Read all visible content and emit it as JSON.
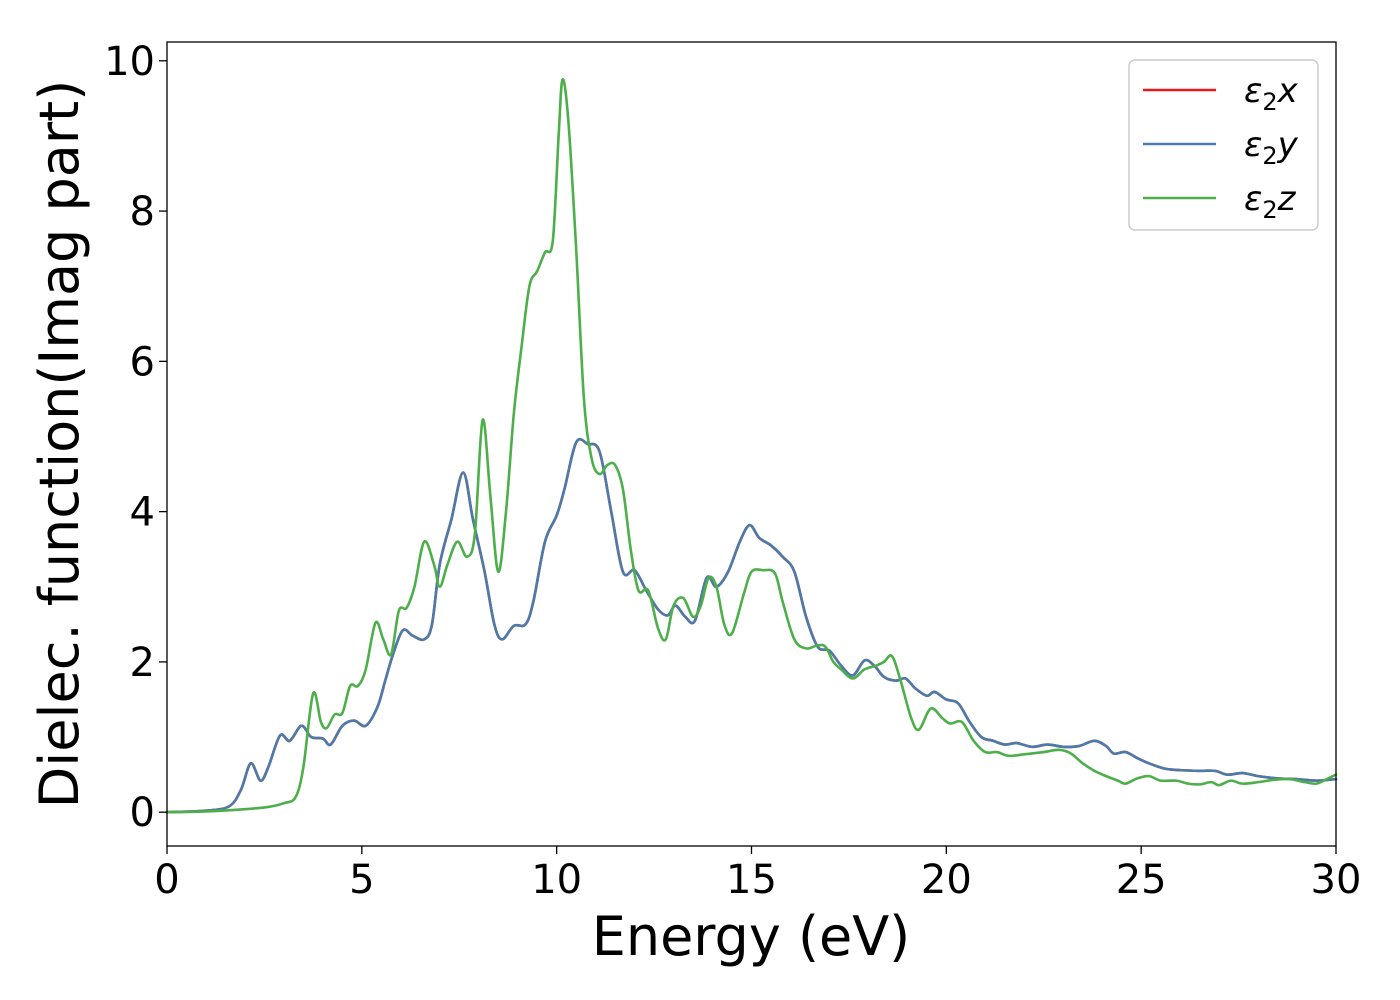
{
  "chart_data": {
    "type": "line",
    "title": "",
    "xlabel": "Energy (eV)",
    "ylabel": "Dielec. function(Imag part)",
    "xlim": [
      0,
      30
    ],
    "ylim": [
      -0.45,
      10.25
    ],
    "xticks": [
      0,
      5,
      10,
      15,
      20,
      25,
      30
    ],
    "yticks": [
      0,
      2,
      4,
      6,
      8,
      10
    ],
    "grid": false,
    "legend_position": "top-right",
    "series": [
      {
        "name": "ε₂x",
        "legend_base": "ε",
        "legend_sub": "2",
        "legend_suffix": "x",
        "color": "#e41a1c",
        "points": [
          [
            0,
            0
          ],
          [
            1,
            0.02
          ],
          [
            1.6,
            0.08
          ],
          [
            1.9,
            0.3
          ],
          [
            2.15,
            0.65
          ],
          [
            2.4,
            0.42
          ],
          [
            2.6,
            0.6
          ],
          [
            2.9,
            1.02
          ],
          [
            3.15,
            0.95
          ],
          [
            3.45,
            1.15
          ],
          [
            3.7,
            1.0
          ],
          [
            4.0,
            0.98
          ],
          [
            4.2,
            0.9
          ],
          [
            4.5,
            1.15
          ],
          [
            4.8,
            1.22
          ],
          [
            5.1,
            1.15
          ],
          [
            5.4,
            1.4
          ],
          [
            5.6,
            1.75
          ],
          [
            5.8,
            2.1
          ],
          [
            6.05,
            2.42
          ],
          [
            6.3,
            2.35
          ],
          [
            6.6,
            2.3
          ],
          [
            6.8,
            2.5
          ],
          [
            7.0,
            3.3
          ],
          [
            7.3,
            3.9
          ],
          [
            7.6,
            4.52
          ],
          [
            7.85,
            3.9
          ],
          [
            8.15,
            3.2
          ],
          [
            8.4,
            2.5
          ],
          [
            8.6,
            2.3
          ],
          [
            8.9,
            2.48
          ],
          [
            9.2,
            2.5
          ],
          [
            9.4,
            2.8
          ],
          [
            9.7,
            3.6
          ],
          [
            10.0,
            3.95
          ],
          [
            10.2,
            4.3
          ],
          [
            10.5,
            4.92
          ],
          [
            10.8,
            4.9
          ],
          [
            11.1,
            4.8
          ],
          [
            11.4,
            4.0
          ],
          [
            11.7,
            3.2
          ],
          [
            12.0,
            3.22
          ],
          [
            12.3,
            2.95
          ],
          [
            12.6,
            2.7
          ],
          [
            12.85,
            2.62
          ],
          [
            13.05,
            2.75
          ],
          [
            13.3,
            2.6
          ],
          [
            13.55,
            2.55
          ],
          [
            13.85,
            3.12
          ],
          [
            14.1,
            3.0
          ],
          [
            14.4,
            3.2
          ],
          [
            14.7,
            3.6
          ],
          [
            14.95,
            3.82
          ],
          [
            15.2,
            3.65
          ],
          [
            15.5,
            3.55
          ],
          [
            15.8,
            3.4
          ],
          [
            16.1,
            3.2
          ],
          [
            16.4,
            2.6
          ],
          [
            16.7,
            2.2
          ],
          [
            17.0,
            2.15
          ],
          [
            17.3,
            1.95
          ],
          [
            17.6,
            1.82
          ],
          [
            17.9,
            2.02
          ],
          [
            18.15,
            1.95
          ],
          [
            18.4,
            1.8
          ],
          [
            18.7,
            1.75
          ],
          [
            18.95,
            1.78
          ],
          [
            19.2,
            1.65
          ],
          [
            19.5,
            1.55
          ],
          [
            19.7,
            1.6
          ],
          [
            20.0,
            1.5
          ],
          [
            20.3,
            1.45
          ],
          [
            20.6,
            1.2
          ],
          [
            20.9,
            1.0
          ],
          [
            21.2,
            0.95
          ],
          [
            21.5,
            0.9
          ],
          [
            21.8,
            0.92
          ],
          [
            22.2,
            0.87
          ],
          [
            22.6,
            0.9
          ],
          [
            23.0,
            0.87
          ],
          [
            23.4,
            0.88
          ],
          [
            23.8,
            0.95
          ],
          [
            24.1,
            0.88
          ],
          [
            24.3,
            0.78
          ],
          [
            24.6,
            0.8
          ],
          [
            24.9,
            0.72
          ],
          [
            25.2,
            0.65
          ],
          [
            25.6,
            0.58
          ],
          [
            26.0,
            0.56
          ],
          [
            26.5,
            0.55
          ],
          [
            26.9,
            0.55
          ],
          [
            27.2,
            0.5
          ],
          [
            27.6,
            0.52
          ],
          [
            28.0,
            0.48
          ],
          [
            28.5,
            0.45
          ],
          [
            29.0,
            0.44
          ],
          [
            29.5,
            0.42
          ],
          [
            30.0,
            0.44
          ]
        ]
      },
      {
        "name": "ε₂y",
        "legend_base": "ε",
        "legend_sub": "2",
        "legend_suffix": "y",
        "color": "#4a7bab",
        "points": [
          [
            0,
            0
          ],
          [
            1,
            0.02
          ],
          [
            1.6,
            0.08
          ],
          [
            1.9,
            0.3
          ],
          [
            2.15,
            0.65
          ],
          [
            2.4,
            0.42
          ],
          [
            2.6,
            0.6
          ],
          [
            2.9,
            1.02
          ],
          [
            3.15,
            0.95
          ],
          [
            3.45,
            1.15
          ],
          [
            3.7,
            1.0
          ],
          [
            4.0,
            0.98
          ],
          [
            4.2,
            0.9
          ],
          [
            4.5,
            1.15
          ],
          [
            4.8,
            1.22
          ],
          [
            5.1,
            1.15
          ],
          [
            5.4,
            1.4
          ],
          [
            5.6,
            1.75
          ],
          [
            5.8,
            2.1
          ],
          [
            6.05,
            2.42
          ],
          [
            6.3,
            2.35
          ],
          [
            6.6,
            2.3
          ],
          [
            6.8,
            2.5
          ],
          [
            7.0,
            3.3
          ],
          [
            7.3,
            3.9
          ],
          [
            7.6,
            4.52
          ],
          [
            7.85,
            3.9
          ],
          [
            8.15,
            3.2
          ],
          [
            8.4,
            2.5
          ],
          [
            8.6,
            2.3
          ],
          [
            8.9,
            2.48
          ],
          [
            9.2,
            2.5
          ],
          [
            9.4,
            2.8
          ],
          [
            9.7,
            3.6
          ],
          [
            10.0,
            3.95
          ],
          [
            10.2,
            4.3
          ],
          [
            10.5,
            4.92
          ],
          [
            10.8,
            4.9
          ],
          [
            11.1,
            4.8
          ],
          [
            11.4,
            4.0
          ],
          [
            11.7,
            3.2
          ],
          [
            12.0,
            3.22
          ],
          [
            12.3,
            2.95
          ],
          [
            12.6,
            2.7
          ],
          [
            12.85,
            2.62
          ],
          [
            13.05,
            2.75
          ],
          [
            13.3,
            2.6
          ],
          [
            13.55,
            2.55
          ],
          [
            13.85,
            3.12
          ],
          [
            14.1,
            3.0
          ],
          [
            14.4,
            3.2
          ],
          [
            14.7,
            3.6
          ],
          [
            14.95,
            3.82
          ],
          [
            15.2,
            3.65
          ],
          [
            15.5,
            3.55
          ],
          [
            15.8,
            3.4
          ],
          [
            16.1,
            3.2
          ],
          [
            16.4,
            2.6
          ],
          [
            16.7,
            2.2
          ],
          [
            17.0,
            2.15
          ],
          [
            17.3,
            1.95
          ],
          [
            17.6,
            1.82
          ],
          [
            17.9,
            2.02
          ],
          [
            18.15,
            1.95
          ],
          [
            18.4,
            1.8
          ],
          [
            18.7,
            1.75
          ],
          [
            18.95,
            1.78
          ],
          [
            19.2,
            1.65
          ],
          [
            19.5,
            1.55
          ],
          [
            19.7,
            1.6
          ],
          [
            20.0,
            1.5
          ],
          [
            20.3,
            1.45
          ],
          [
            20.6,
            1.2
          ],
          [
            20.9,
            1.0
          ],
          [
            21.2,
            0.95
          ],
          [
            21.5,
            0.9
          ],
          [
            21.8,
            0.92
          ],
          [
            22.2,
            0.87
          ],
          [
            22.6,
            0.9
          ],
          [
            23.0,
            0.87
          ],
          [
            23.4,
            0.88
          ],
          [
            23.8,
            0.95
          ],
          [
            24.1,
            0.88
          ],
          [
            24.3,
            0.78
          ],
          [
            24.6,
            0.8
          ],
          [
            24.9,
            0.72
          ],
          [
            25.2,
            0.65
          ],
          [
            25.6,
            0.58
          ],
          [
            26.0,
            0.56
          ],
          [
            26.5,
            0.55
          ],
          [
            26.9,
            0.55
          ],
          [
            27.2,
            0.5
          ],
          [
            27.6,
            0.52
          ],
          [
            28.0,
            0.48
          ],
          [
            28.5,
            0.45
          ],
          [
            29.0,
            0.44
          ],
          [
            29.5,
            0.42
          ],
          [
            30.0,
            0.44
          ]
        ]
      },
      {
        "name": "ε₂z",
        "legend_base": "ε",
        "legend_sub": "2",
        "legend_suffix": "z",
        "color": "#4daf4a",
        "points": [
          [
            0,
            0
          ],
          [
            1,
            0.01
          ],
          [
            2,
            0.04
          ],
          [
            2.6,
            0.07
          ],
          [
            3.0,
            0.12
          ],
          [
            3.3,
            0.2
          ],
          [
            3.5,
            0.6
          ],
          [
            3.75,
            1.58
          ],
          [
            3.95,
            1.2
          ],
          [
            4.1,
            1.12
          ],
          [
            4.3,
            1.3
          ],
          [
            4.5,
            1.32
          ],
          [
            4.7,
            1.68
          ],
          [
            4.9,
            1.68
          ],
          [
            5.1,
            1.9
          ],
          [
            5.35,
            2.52
          ],
          [
            5.55,
            2.3
          ],
          [
            5.75,
            2.1
          ],
          [
            5.95,
            2.68
          ],
          [
            6.15,
            2.72
          ],
          [
            6.35,
            3.0
          ],
          [
            6.6,
            3.6
          ],
          [
            6.85,
            3.3
          ],
          [
            7.0,
            3.0
          ],
          [
            7.2,
            3.3
          ],
          [
            7.45,
            3.6
          ],
          [
            7.7,
            3.4
          ],
          [
            7.9,
            3.7
          ],
          [
            8.1,
            5.22
          ],
          [
            8.3,
            4.2
          ],
          [
            8.5,
            3.2
          ],
          [
            8.7,
            4.0
          ],
          [
            8.9,
            5.3
          ],
          [
            9.1,
            6.2
          ],
          [
            9.3,
            7.0
          ],
          [
            9.5,
            7.2
          ],
          [
            9.7,
            7.45
          ],
          [
            9.9,
            7.6
          ],
          [
            10.05,
            9.0
          ],
          [
            10.15,
            9.75
          ],
          [
            10.3,
            9.2
          ],
          [
            10.5,
            7.5
          ],
          [
            10.7,
            5.5
          ],
          [
            10.9,
            4.7
          ],
          [
            11.1,
            4.5
          ],
          [
            11.3,
            4.62
          ],
          [
            11.5,
            4.62
          ],
          [
            11.7,
            4.3
          ],
          [
            11.9,
            3.5
          ],
          [
            12.1,
            2.95
          ],
          [
            12.35,
            2.95
          ],
          [
            12.6,
            2.45
          ],
          [
            12.8,
            2.3
          ],
          [
            13.0,
            2.75
          ],
          [
            13.25,
            2.85
          ],
          [
            13.5,
            2.6
          ],
          [
            13.7,
            2.75
          ],
          [
            13.9,
            3.12
          ],
          [
            14.1,
            3.0
          ],
          [
            14.3,
            2.5
          ],
          [
            14.5,
            2.38
          ],
          [
            14.8,
            2.9
          ],
          [
            15.0,
            3.2
          ],
          [
            15.3,
            3.22
          ],
          [
            15.6,
            3.18
          ],
          [
            15.8,
            2.8
          ],
          [
            16.1,
            2.3
          ],
          [
            16.4,
            2.18
          ],
          [
            16.7,
            2.22
          ],
          [
            16.9,
            2.2
          ],
          [
            17.1,
            2.0
          ],
          [
            17.3,
            1.9
          ],
          [
            17.6,
            1.78
          ],
          [
            17.9,
            1.9
          ],
          [
            18.2,
            1.95
          ],
          [
            18.4,
            2.0
          ],
          [
            18.6,
            2.08
          ],
          [
            18.8,
            1.8
          ],
          [
            19.1,
            1.25
          ],
          [
            19.3,
            1.1
          ],
          [
            19.6,
            1.38
          ],
          [
            19.9,
            1.25
          ],
          [
            20.1,
            1.18
          ],
          [
            20.4,
            1.2
          ],
          [
            20.7,
            0.95
          ],
          [
            21.0,
            0.8
          ],
          [
            21.3,
            0.8
          ],
          [
            21.6,
            0.75
          ],
          [
            22.0,
            0.77
          ],
          [
            22.5,
            0.8
          ],
          [
            22.9,
            0.83
          ],
          [
            23.2,
            0.78
          ],
          [
            23.5,
            0.65
          ],
          [
            23.8,
            0.55
          ],
          [
            24.1,
            0.48
          ],
          [
            24.4,
            0.42
          ],
          [
            24.6,
            0.38
          ],
          [
            24.9,
            0.45
          ],
          [
            25.2,
            0.48
          ],
          [
            25.5,
            0.42
          ],
          [
            25.9,
            0.42
          ],
          [
            26.2,
            0.38
          ],
          [
            26.5,
            0.37
          ],
          [
            26.8,
            0.4
          ],
          [
            27.0,
            0.36
          ],
          [
            27.3,
            0.42
          ],
          [
            27.6,
            0.38
          ],
          [
            28.0,
            0.4
          ],
          [
            28.4,
            0.43
          ],
          [
            28.8,
            0.44
          ],
          [
            29.2,
            0.4
          ],
          [
            29.5,
            0.38
          ],
          [
            29.8,
            0.45
          ],
          [
            30.0,
            0.5
          ]
        ]
      }
    ]
  }
}
